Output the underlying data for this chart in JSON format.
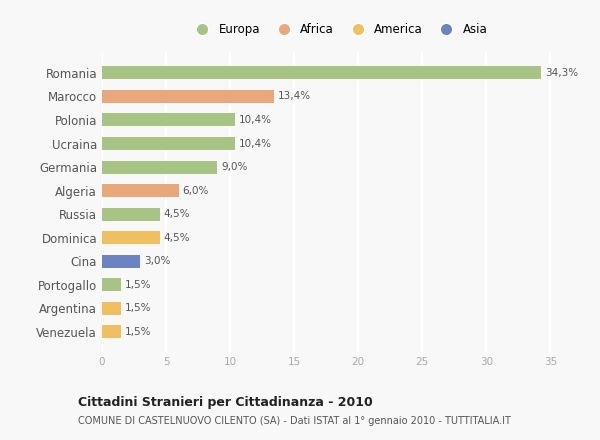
{
  "countries": [
    "Romania",
    "Marocco",
    "Polonia",
    "Ucraina",
    "Germania",
    "Algeria",
    "Russia",
    "Dominica",
    "Cina",
    "Portogallo",
    "Argentina",
    "Venezuela"
  ],
  "values": [
    34.3,
    13.4,
    10.4,
    10.4,
    9.0,
    6.0,
    4.5,
    4.5,
    3.0,
    1.5,
    1.5,
    1.5
  ],
  "labels": [
    "34,3%",
    "13,4%",
    "10,4%",
    "10,4%",
    "9,0%",
    "6,0%",
    "4,5%",
    "4,5%",
    "3,0%",
    "1,5%",
    "1,5%",
    "1,5%"
  ],
  "colors": [
    "#a8c484",
    "#e8a87c",
    "#a8c484",
    "#a8c484",
    "#a8c484",
    "#e8a87c",
    "#a8c484",
    "#f0c060",
    "#6b83c0",
    "#a8c484",
    "#f0c060",
    "#f0c060"
  ],
  "legend_labels": [
    "Europa",
    "Africa",
    "America",
    "Asia"
  ],
  "legend_colors": [
    "#a8c484",
    "#e8a87c",
    "#f0c060",
    "#6b83c0"
  ],
  "title": "Cittadini Stranieri per Cittadinanza - 2010",
  "subtitle": "COMUNE DI CASTELNUOVO CILENTO (SA) - Dati ISTAT al 1° gennaio 2010 - TUTTITALIA.IT",
  "xlim": [
    0,
    37
  ],
  "xticks": [
    0,
    5,
    10,
    15,
    20,
    25,
    30,
    35
  ],
  "bg_color": "#f8f8f8",
  "plot_bg_color": "#f8f8f8",
  "grid_color": "#ffffff",
  "bar_height": 0.55
}
